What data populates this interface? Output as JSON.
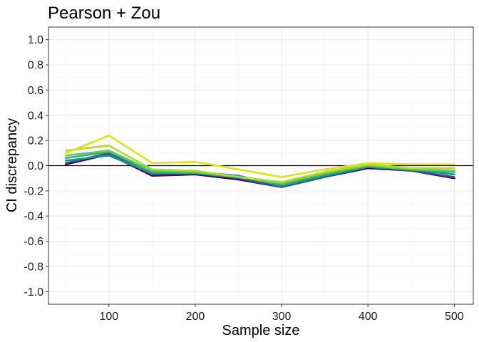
{
  "chart_data": {
    "type": "line",
    "title": "Pearson + Zou",
    "xlabel": "Sample size",
    "ylabel": "CI discrepancy",
    "x": [
      50,
      100,
      150,
      200,
      250,
      300,
      350,
      400,
      450,
      500
    ],
    "xlim": [
      30,
      522
    ],
    "ylim": [
      -1.1,
      1.1
    ],
    "x_ticks": [
      100,
      200,
      300,
      400,
      500
    ],
    "y_ticks": [
      1.0,
      0.8,
      0.6,
      0.4,
      0.2,
      0.0,
      -0.2,
      -0.4,
      -0.6,
      -0.8,
      -1.0
    ],
    "x_tick_labels": [
      "100",
      "200",
      "300",
      "400",
      "500"
    ],
    "y_tick_labels": [
      "1.0",
      "0.8",
      "0.6",
      "0.4",
      "0.2",
      "0.0",
      "-0.2",
      "-0.4",
      "-0.6",
      "-0.8",
      "-1.0"
    ],
    "reference_line_y": 0,
    "grid": true,
    "legend": "none",
    "series": [
      {
        "color": "#440154",
        "values": [
          0.01,
          0.09,
          -0.08,
          -0.07,
          -0.11,
          -0.17,
          -0.09,
          -0.02,
          -0.04,
          -0.1
        ]
      },
      {
        "color": "#3b528b",
        "values": [
          0.02,
          0.1,
          -0.07,
          -0.06,
          -0.1,
          -0.17,
          -0.09,
          -0.01,
          -0.04,
          -0.09
        ]
      },
      {
        "color": "#21918c",
        "values": [
          0.04,
          0.08,
          -0.06,
          -0.05,
          -0.08,
          -0.16,
          -0.08,
          -0.01,
          -0.03,
          -0.07
        ]
      },
      {
        "color": "#2db27d",
        "values": [
          0.06,
          0.11,
          -0.05,
          -0.06,
          -0.09,
          -0.15,
          -0.07,
          0.0,
          -0.03,
          -0.05
        ]
      },
      {
        "color": "#5ec962",
        "values": [
          0.08,
          0.12,
          -0.04,
          -0.05,
          -0.09,
          -0.14,
          -0.06,
          0.0,
          -0.03,
          -0.04
        ]
      },
      {
        "color": "#addc30",
        "values": [
          0.12,
          0.16,
          -0.03,
          -0.04,
          -0.09,
          -0.13,
          -0.05,
          0.01,
          -0.02,
          -0.02
        ]
      },
      {
        "color": "#dde318",
        "values": [
          0.1,
          0.24,
          0.02,
          0.03,
          -0.03,
          -0.09,
          -0.03,
          0.02,
          0.01,
          0.01
        ]
      }
    ]
  }
}
